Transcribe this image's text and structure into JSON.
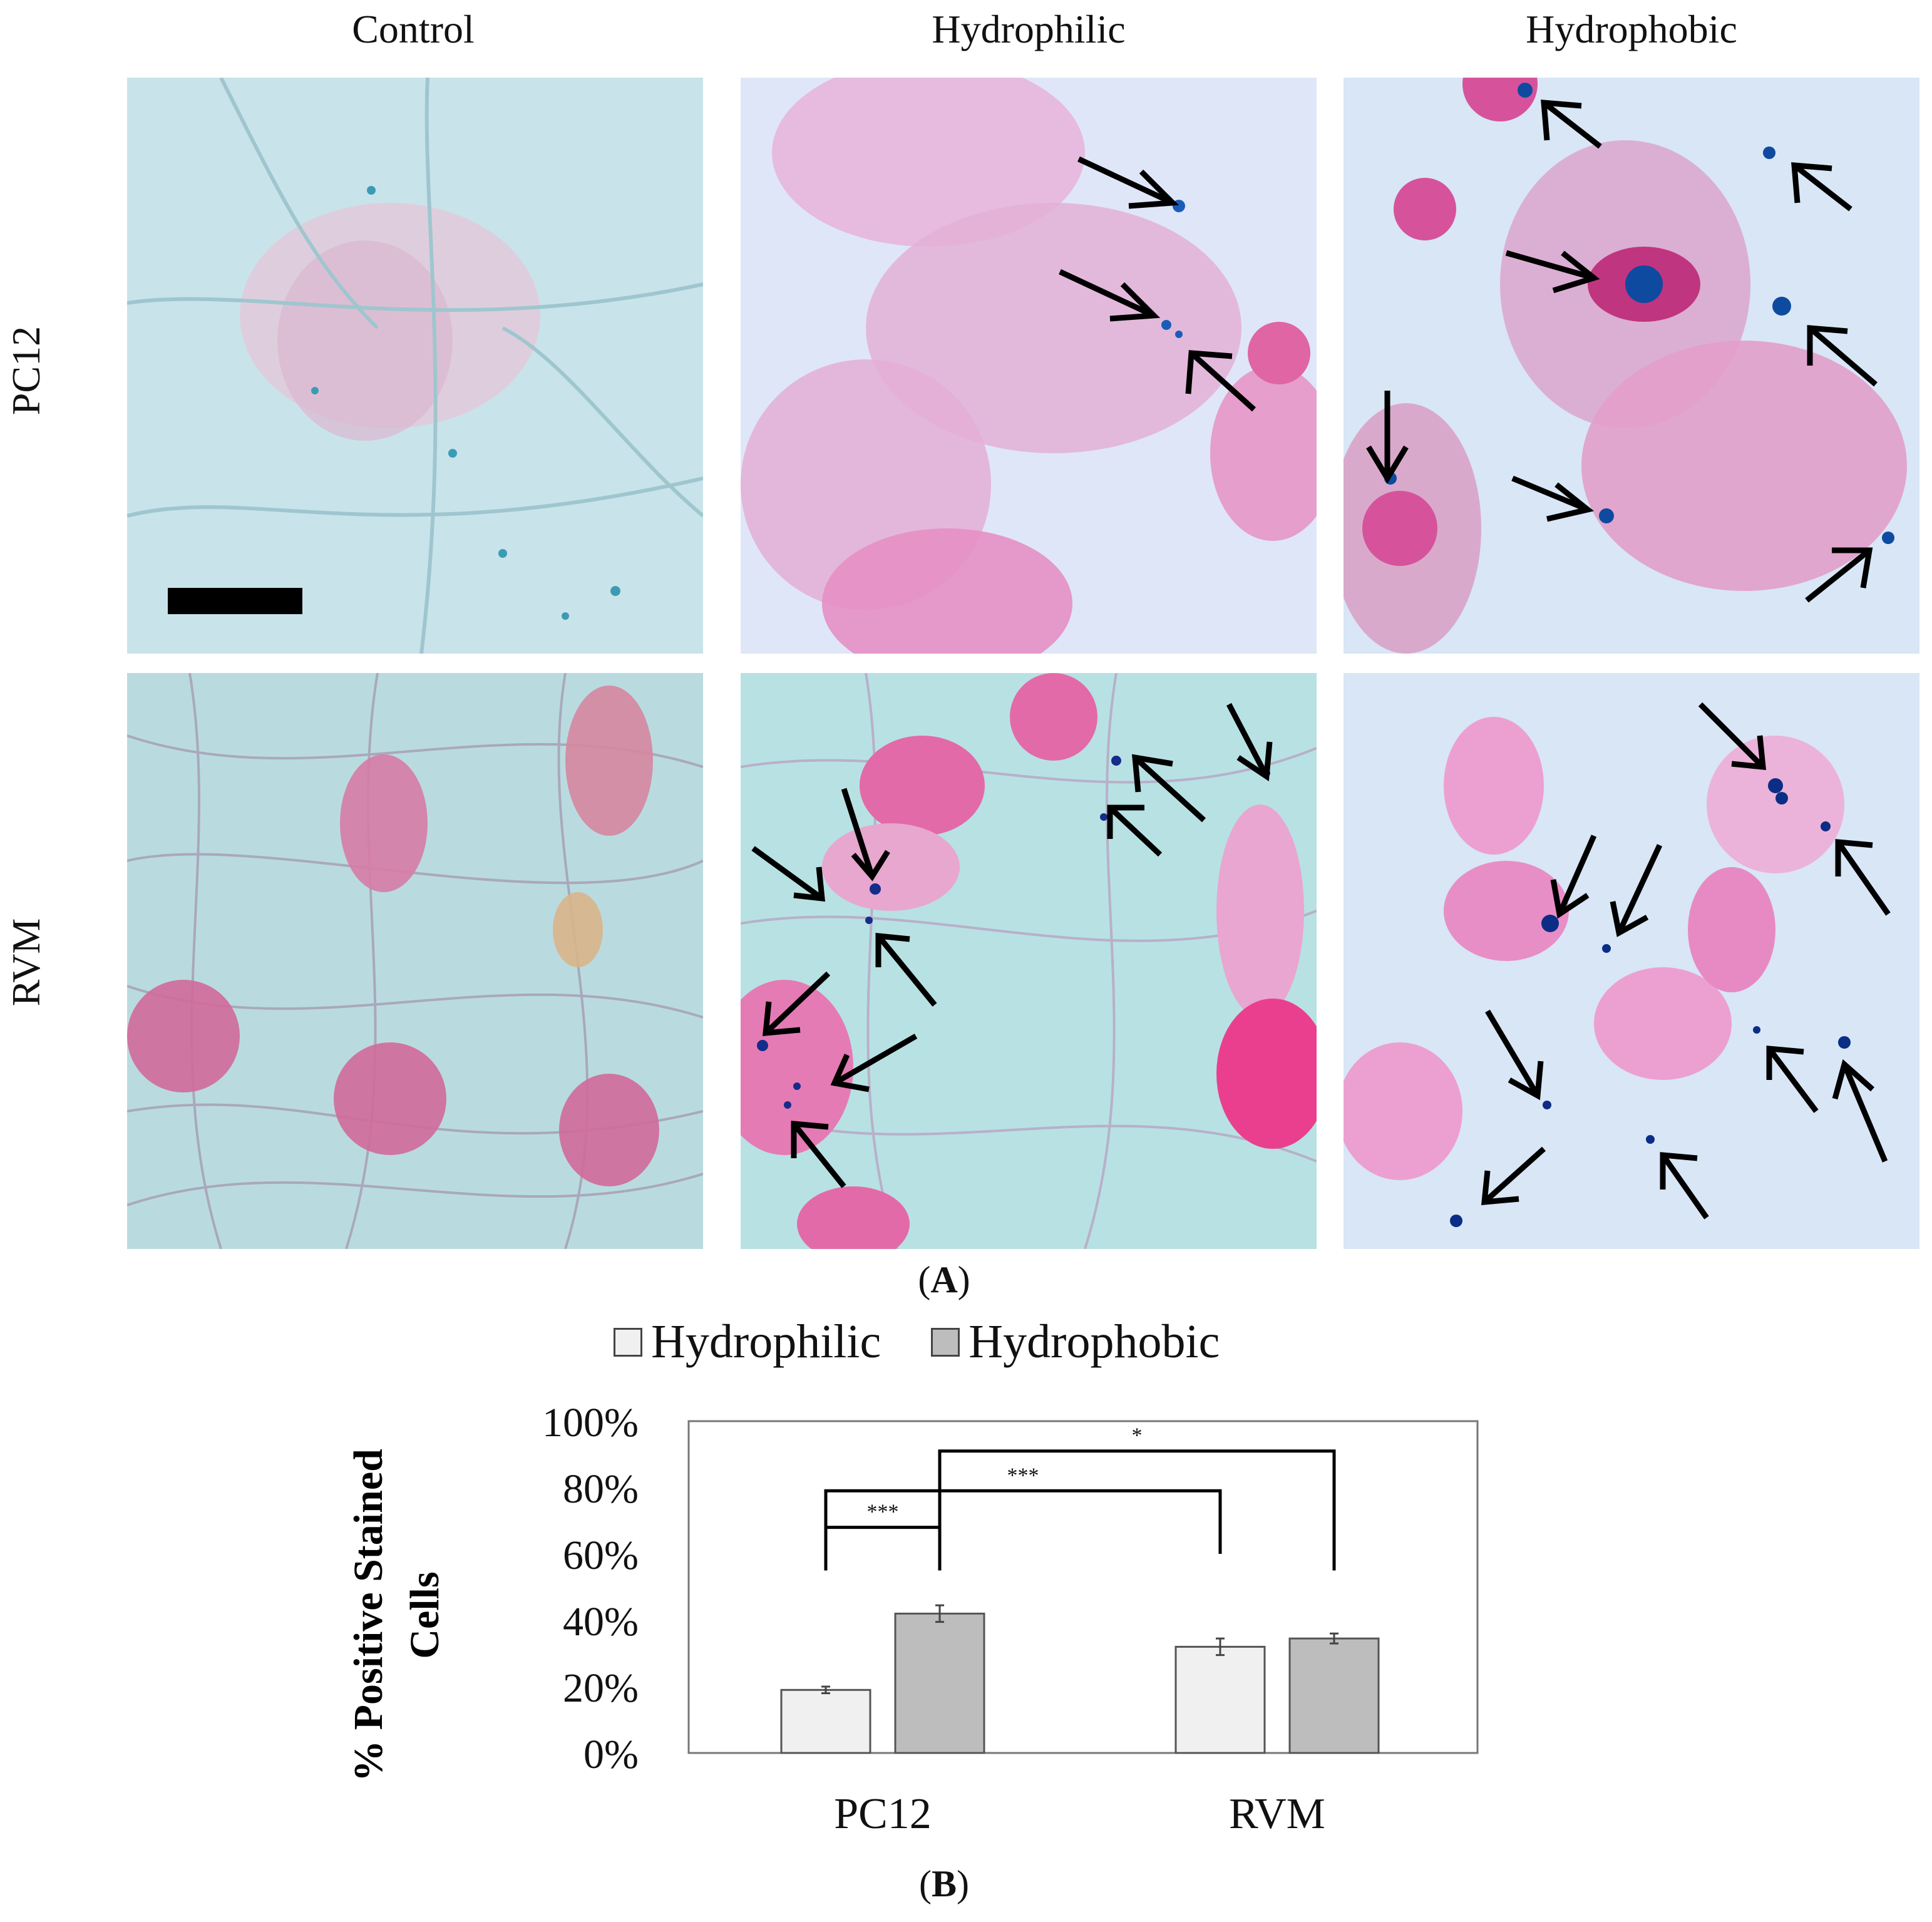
{
  "figure_a": {
    "columns": [
      "Control",
      "Hydrophilic",
      "Hydrophobic"
    ],
    "rows": [
      "PC12",
      "RVM"
    ],
    "caption_letter": "A"
  },
  "figure_b": {
    "caption_letter": "B"
  },
  "chart_data": {
    "type": "bar",
    "categories": [
      "PC12",
      "RVM"
    ],
    "series": [
      {
        "name": "Hydrophilic",
        "values": [
          19,
          32
        ],
        "errors": [
          1,
          2.5
        ],
        "color": "#f0f0f0"
      },
      {
        "name": "Hydrophobic",
        "values": [
          42,
          34.5
        ],
        "errors": [
          2.5,
          1.5
        ],
        "color": "#bdbdbd"
      }
    ],
    "ylabel": "% Positive Stained Cells",
    "ylabel_lines": [
      "% Positive Stained",
      "Cells"
    ],
    "ylim": [
      0,
      100
    ],
    "yticks": [
      "0%",
      "20%",
      "40%",
      "60%",
      "80%",
      "100%"
    ],
    "legend_position": "top",
    "grid": false,
    "significance": [
      {
        "from": "PC12-Hydrophilic",
        "to": "PC12-Hydrophobic",
        "label": "***"
      },
      {
        "from": "PC12-Hydrophilic",
        "to": "RVM-Hydrophilic",
        "label": "***"
      },
      {
        "from": "PC12-Hydrophobic",
        "to": "RVM-Hydrophobic",
        "label": "*"
      }
    ]
  }
}
